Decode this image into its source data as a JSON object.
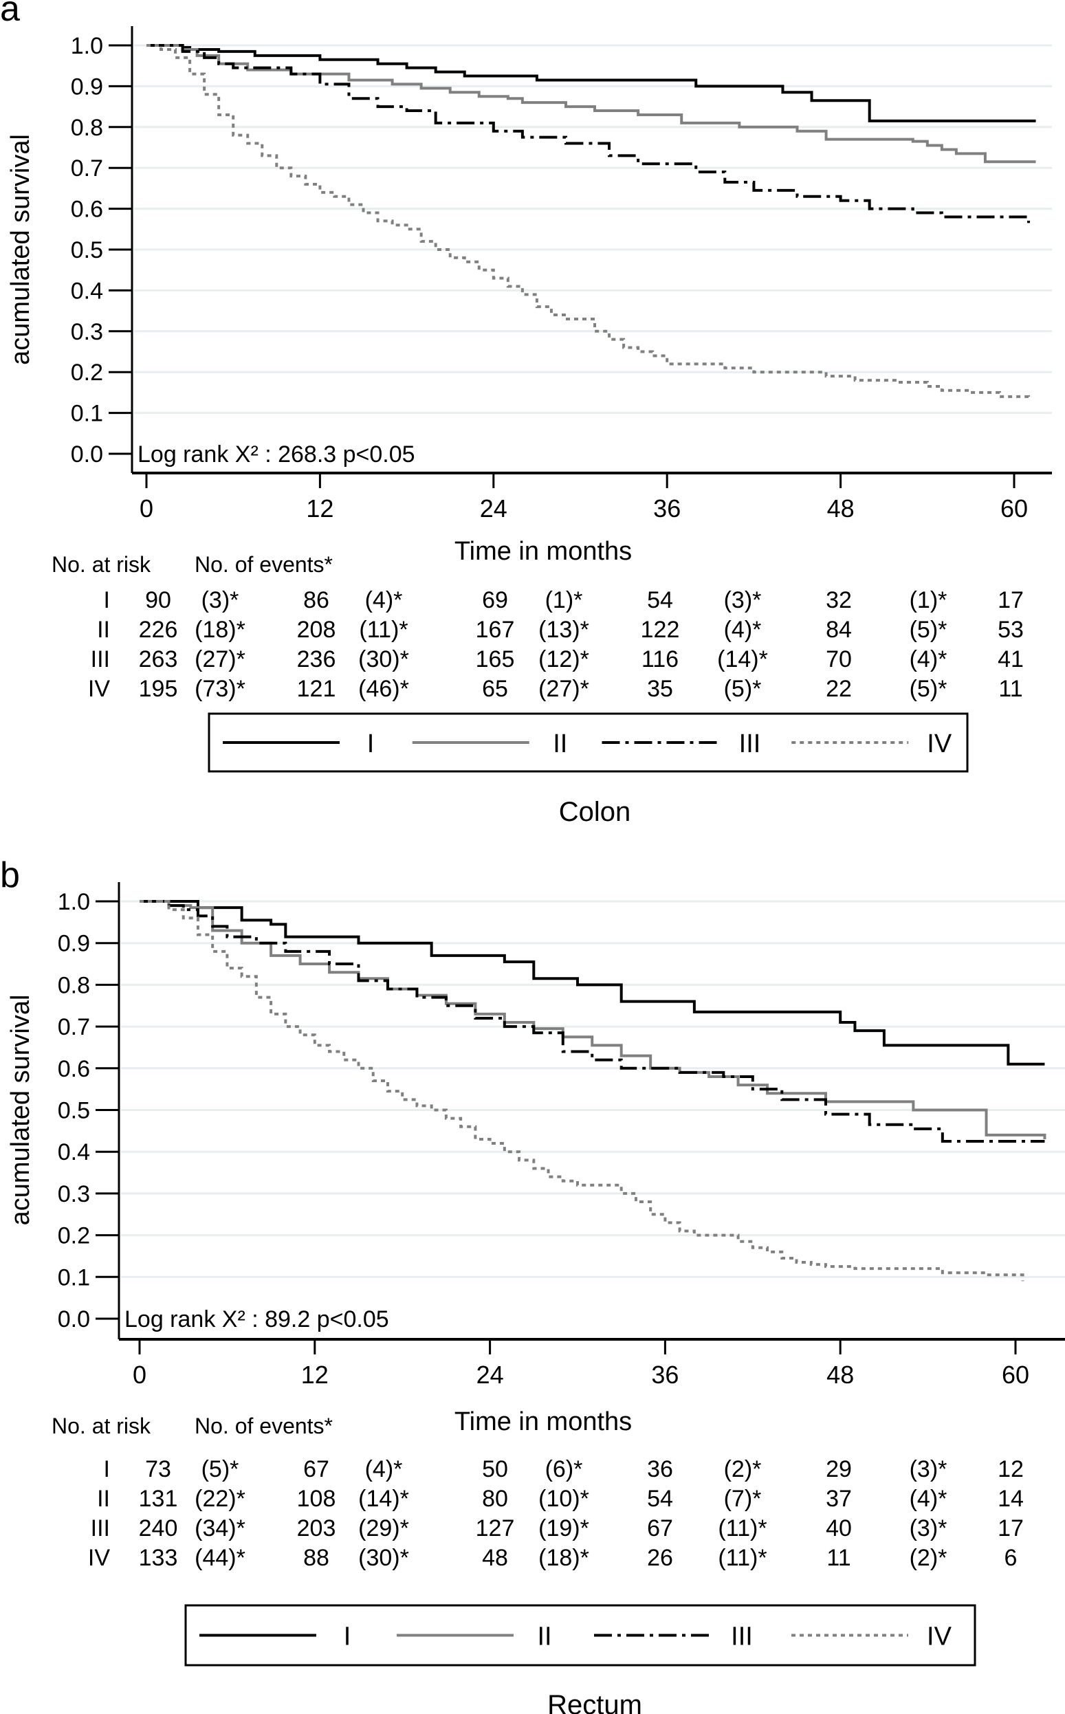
{
  "chart_data": [
    {
      "type": "line",
      "subtype": "kaplan-meier-step",
      "panel_label": "a",
      "title": "Colon",
      "xlabel": "Time in months",
      "ylabel": "acumulated survival",
      "xlim": [
        0,
        62
      ],
      "ylim": [
        0.0,
        1.0
      ],
      "x_ticks": [
        "0",
        "12",
        "24",
        "36",
        "48",
        "60"
      ],
      "y_ticks": [
        "0.0",
        "0.1",
        "0.2",
        "0.3",
        "0.4",
        "0.5",
        "0.6",
        "0.7",
        "0.8",
        "0.9",
        "1.0"
      ],
      "grid": true,
      "annotation": "Log rank X² : 268.3  p<0.05",
      "legend_position": "bottom",
      "series": [
        {
          "name": "I",
          "style": "solid",
          "color": "#000000",
          "x": [
            0,
            2.5,
            3,
            5,
            7.5,
            12,
            16,
            18,
            20,
            22,
            27,
            38,
            44,
            46,
            50,
            61.5
          ],
          "y": [
            1.0,
            0.995,
            0.99,
            0.985,
            0.975,
            0.965,
            0.955,
            0.945,
            0.935,
            0.925,
            0.915,
            0.9,
            0.885,
            0.865,
            0.815,
            0.815
          ]
        },
        {
          "name": "II",
          "style": "solid",
          "color": "#808080",
          "x": [
            0,
            2.5,
            3.5,
            5,
            7,
            10,
            14,
            17,
            19,
            21,
            23,
            25,
            26,
            29,
            31,
            34,
            37,
            41,
            45,
            47,
            53,
            54,
            55,
            56,
            58,
            61.5
          ],
          "y": [
            1.0,
            0.99,
            0.975,
            0.955,
            0.94,
            0.93,
            0.915,
            0.905,
            0.895,
            0.885,
            0.875,
            0.87,
            0.86,
            0.85,
            0.84,
            0.83,
            0.81,
            0.8,
            0.79,
            0.77,
            0.765,
            0.755,
            0.745,
            0.735,
            0.715,
            0.715
          ]
        },
        {
          "name": "III",
          "style": "dashdot",
          "color": "#000000",
          "x": [
            0,
            2.5,
            4,
            5,
            6,
            10,
            12,
            14,
            16,
            18,
            20,
            24,
            26,
            29,
            32,
            34,
            38,
            40,
            42,
            45,
            48,
            50,
            53,
            55,
            61
          ],
          "y": [
            1.0,
            0.985,
            0.97,
            0.955,
            0.945,
            0.93,
            0.905,
            0.87,
            0.85,
            0.84,
            0.81,
            0.79,
            0.775,
            0.76,
            0.73,
            0.71,
            0.69,
            0.665,
            0.645,
            0.63,
            0.62,
            0.6,
            0.59,
            0.58,
            0.565
          ]
        },
        {
          "name": "IV",
          "style": "dotted",
          "color": "#808080",
          "x": [
            0,
            1,
            2,
            3,
            4,
            5,
            6,
            7,
            8,
            9,
            10,
            11,
            12,
            13,
            14,
            15,
            16,
            17,
            18,
            19,
            20,
            21,
            22,
            23,
            24,
            25,
            26,
            27,
            28,
            29,
            30,
            31,
            32,
            33,
            34,
            35,
            36,
            40,
            42,
            46,
            47,
            49,
            52,
            54,
            55,
            57,
            59,
            61
          ],
          "y": [
            1.0,
            0.99,
            0.97,
            0.93,
            0.88,
            0.83,
            0.78,
            0.76,
            0.73,
            0.7,
            0.68,
            0.66,
            0.64,
            0.63,
            0.61,
            0.59,
            0.57,
            0.56,
            0.55,
            0.52,
            0.5,
            0.48,
            0.47,
            0.45,
            0.43,
            0.41,
            0.39,
            0.36,
            0.34,
            0.33,
            0.33,
            0.3,
            0.28,
            0.26,
            0.25,
            0.24,
            0.22,
            0.21,
            0.2,
            0.2,
            0.19,
            0.18,
            0.175,
            0.165,
            0.155,
            0.15,
            0.14,
            0.135
          ]
        }
      ],
      "risk_table": {
        "header_at_risk": "No. at risk",
        "header_events": "No. of events*",
        "rows": [
          {
            "label": "I",
            "cells": [
              "90",
              "(3)*",
              "86",
              "(4)*",
              "69",
              "(1)*",
              "54",
              "(3)*",
              "32",
              "(1)*",
              "17"
            ]
          },
          {
            "label": "II",
            "cells": [
              "226",
              "(18)*",
              "208",
              "(11)*",
              "167",
              "(13)*",
              "122",
              "(4)*",
              "84",
              "(5)*",
              "53"
            ]
          },
          {
            "label": "III",
            "cells": [
              "263",
              "(27)*",
              "236",
              "(30)*",
              "165",
              "(12)*",
              "116",
              "(14)*",
              "70",
              "(4)*",
              "41"
            ]
          },
          {
            "label": "IV",
            "cells": [
              "195",
              "(73)*",
              "121",
              "(46)*",
              "65",
              "(27)*",
              "35",
              "(5)*",
              "22",
              "(5)*",
              "11"
            ]
          }
        ]
      }
    },
    {
      "type": "line",
      "subtype": "kaplan-meier-step",
      "panel_label": "b",
      "title": "Rectum",
      "xlabel": "Time in months",
      "ylabel": "acumulated survival",
      "xlim": [
        0,
        62
      ],
      "ylim": [
        0.0,
        1.0
      ],
      "x_ticks": [
        "0",
        "12",
        "24",
        "36",
        "48",
        "60"
      ],
      "y_ticks": [
        "0.0",
        "0.1",
        "0.2",
        "0.3",
        "0.4",
        "0.5",
        "0.6",
        "0.7",
        "0.8",
        "0.9",
        "1.0"
      ],
      "grid": true,
      "annotation": "Log rank X² : 89.2  p<0.05",
      "legend_position": "bottom",
      "series": [
        {
          "name": "I",
          "style": "solid",
          "color": "#000000",
          "x": [
            0,
            4,
            7,
            9,
            10,
            15,
            20,
            25,
            27,
            30,
            33,
            38,
            40,
            44,
            48,
            49,
            51,
            55,
            59.5,
            62
          ],
          "y": [
            1.0,
            0.985,
            0.955,
            0.945,
            0.915,
            0.9,
            0.87,
            0.855,
            0.815,
            0.8,
            0.76,
            0.735,
            0.735,
            0.735,
            0.71,
            0.69,
            0.655,
            0.655,
            0.61,
            0.61
          ]
        },
        {
          "name": "II",
          "style": "solid",
          "color": "#808080",
          "x": [
            0,
            2,
            3.5,
            5,
            7,
            9,
            11,
            13,
            15,
            17,
            19,
            21,
            23,
            25,
            27,
            29,
            31,
            33,
            35,
            37,
            39,
            41,
            43,
            47,
            53,
            58,
            62
          ],
          "y": [
            1.0,
            0.99,
            0.985,
            0.93,
            0.9,
            0.87,
            0.85,
            0.83,
            0.815,
            0.79,
            0.775,
            0.755,
            0.73,
            0.71,
            0.695,
            0.675,
            0.655,
            0.63,
            0.6,
            0.59,
            0.58,
            0.56,
            0.54,
            0.52,
            0.5,
            0.44,
            0.43
          ]
        },
        {
          "name": "III",
          "style": "dashdot",
          "color": "#000000",
          "x": [
            0,
            2,
            3,
            4,
            5,
            6,
            8,
            10,
            13,
            15,
            17,
            19,
            21,
            23,
            25,
            27,
            29,
            31,
            33,
            37,
            40,
            42,
            44,
            47,
            50,
            53,
            55,
            62
          ],
          "y": [
            1.0,
            0.99,
            0.98,
            0.965,
            0.94,
            0.915,
            0.9,
            0.88,
            0.85,
            0.81,
            0.79,
            0.77,
            0.75,
            0.72,
            0.7,
            0.685,
            0.64,
            0.62,
            0.6,
            0.59,
            0.58,
            0.55,
            0.525,
            0.49,
            0.465,
            0.455,
            0.425,
            0.425
          ]
        },
        {
          "name": "IV",
          "style": "dotted",
          "color": "#808080",
          "x": [
            0,
            2,
            3,
            4,
            5,
            6,
            7,
            8,
            9,
            10,
            11,
            12,
            13,
            14,
            15,
            16,
            17,
            18,
            19,
            20,
            21,
            22,
            23,
            24,
            25,
            26,
            27,
            28,
            29,
            30,
            31,
            32,
            33,
            34,
            35,
            36,
            37,
            38,
            40,
            41,
            42,
            43,
            44,
            45,
            46,
            47,
            49,
            52,
            55,
            58,
            60.5
          ],
          "y": [
            1.0,
            0.98,
            0.96,
            0.92,
            0.88,
            0.84,
            0.82,
            0.77,
            0.73,
            0.7,
            0.68,
            0.655,
            0.64,
            0.62,
            0.6,
            0.57,
            0.545,
            0.525,
            0.51,
            0.5,
            0.48,
            0.46,
            0.43,
            0.42,
            0.4,
            0.38,
            0.36,
            0.34,
            0.33,
            0.32,
            0.32,
            0.32,
            0.3,
            0.28,
            0.25,
            0.23,
            0.21,
            0.2,
            0.2,
            0.185,
            0.17,
            0.16,
            0.145,
            0.135,
            0.13,
            0.125,
            0.12,
            0.12,
            0.11,
            0.105,
            0.09
          ]
        }
      ],
      "risk_table": {
        "header_at_risk": "No. at risk",
        "header_events": "No. of events*",
        "rows": [
          {
            "label": "I",
            "cells": [
              "73",
              "(5)*",
              "67",
              "(4)*",
              "50",
              "(6)*",
              "36",
              "(2)*",
              "29",
              "(3)*",
              "12"
            ]
          },
          {
            "label": "II",
            "cells": [
              "131",
              "(22)*",
              "108",
              "(14)*",
              "80",
              "(10)*",
              "54",
              "(7)*",
              "37",
              "(4)*",
              "14"
            ]
          },
          {
            "label": "III",
            "cells": [
              "240",
              "(34)*",
              "203",
              "(29)*",
              "127",
              "(19)*",
              "67",
              "(11)*",
              "40",
              "(3)*",
              "17"
            ]
          },
          {
            "label": "IV",
            "cells": [
              "133",
              "(44)*",
              "88",
              "(30)*",
              "48",
              "(18)*",
              "26",
              "(11)*",
              "11",
              "(2)*",
              "6"
            ]
          }
        ]
      }
    }
  ]
}
